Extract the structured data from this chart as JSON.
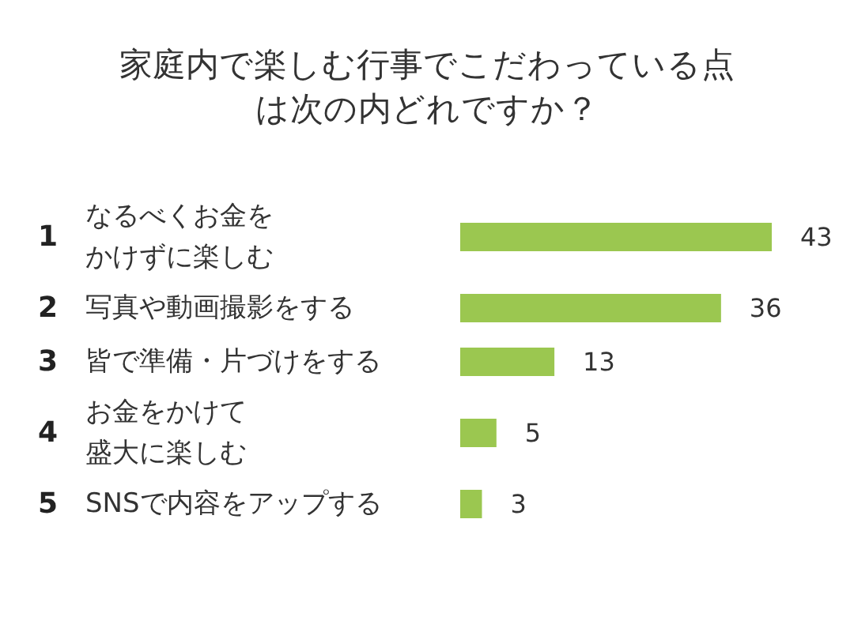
{
  "chart_data": {
    "type": "bar",
    "orientation": "horizontal",
    "title": "家庭内で楽しむ行事でこだわっている点は次の内どれですか？",
    "categories": [
      "なるべくお金をかけずに楽しむ",
      "写真や動画撮影をする",
      "皆で準備・片づけをする",
      "お金をかけて盛大に楽しむ",
      "SNSで内容をアップする"
    ],
    "values": [
      43,
      36,
      13,
      5,
      3
    ],
    "color": "#9bc750",
    "data_labels": true,
    "annotations": [
      "1",
      "2",
      "3",
      "4",
      "5"
    ]
  }
}
